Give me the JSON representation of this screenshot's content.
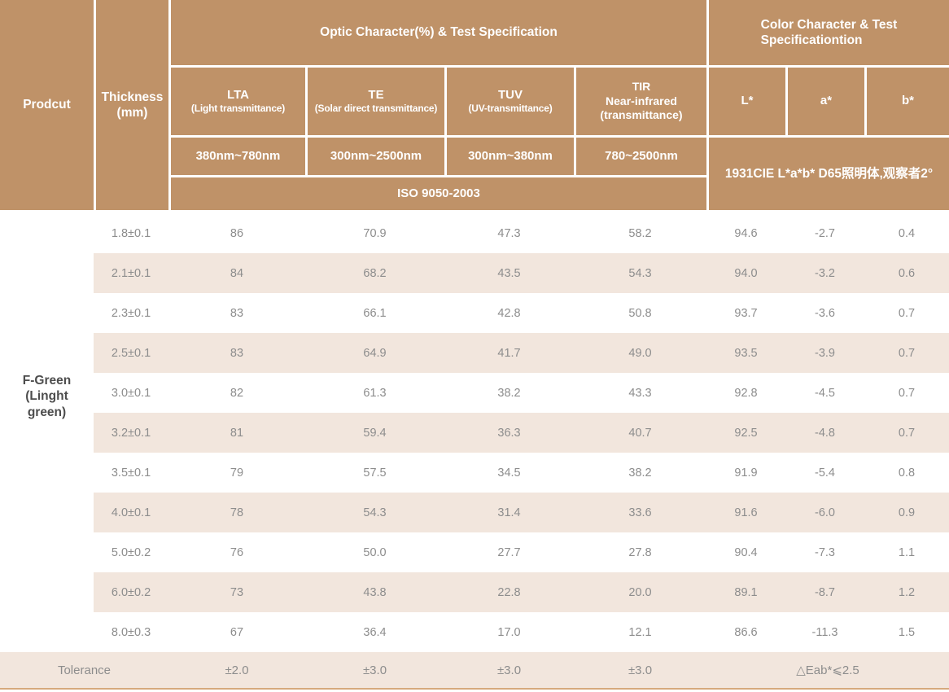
{
  "colors": {
    "header_tan": "#bf9268",
    "row_stripe": "#f2e6dd",
    "data_text": "#8d8d8d",
    "product_text": "#4d4d4d",
    "bottom_line": "#d6a97c"
  },
  "header": {
    "product_label": "Prodcut",
    "thickness_line1": "Thickness",
    "thickness_line2": "(mm)",
    "optic_title": "Optic Character(%) & Test Specification",
    "color_title_line1": "Color Character & Test",
    "color_title_line2": "Specificationtion",
    "lta_abbr": "LTA",
    "lta_desc": "(Light transmittance)",
    "te_abbr": "TE",
    "te_desc": "(Solar direct transmittance)",
    "tuv_abbr": "TUV",
    "tuv_desc": "(UV-transmittance)",
    "tir_line1": "TIR",
    "tir_line2": "Near-infrared",
    "tir_line3": "(transmittance)",
    "l_label": "L*",
    "a_label": "a*",
    "b_label": "b*",
    "range_lta": "380nm~780nm",
    "range_te": "300nm~2500nm",
    "range_tuv": "300nm~380nm",
    "range_tir": "780~2500nm",
    "iso_label": "ISO 9050-2003",
    "cie_label": "1931CIE L*a*b*  D65照明体,观察者2°"
  },
  "product": {
    "name_line1": "F-Green",
    "name_line2": "(Linght",
    "name_line3": "green)"
  },
  "rows": [
    {
      "thickness": "1.8±0.1",
      "lta": "86",
      "te": "70.9",
      "tuv": "47.3",
      "tir": "58.2",
      "l": "94.6",
      "a": "-2.7",
      "b": "0.4"
    },
    {
      "thickness": "2.1±0.1",
      "lta": "84",
      "te": "68.2",
      "tuv": "43.5",
      "tir": "54.3",
      "l": "94.0",
      "a": "-3.2",
      "b": "0.6"
    },
    {
      "thickness": "2.3±0.1",
      "lta": "83",
      "te": "66.1",
      "tuv": "42.8",
      "tir": "50.8",
      "l": "93.7",
      "a": "-3.6",
      "b": "0.7"
    },
    {
      "thickness": "2.5±0.1",
      "lta": "83",
      "te": "64.9",
      "tuv": "41.7",
      "tir": "49.0",
      "l": "93.5",
      "a": "-3.9",
      "b": "0.7"
    },
    {
      "thickness": "3.0±0.1",
      "lta": "82",
      "te": "61.3",
      "tuv": "38.2",
      "tir": "43.3",
      "l": "92.8",
      "a": "-4.5",
      "b": "0.7"
    },
    {
      "thickness": "3.2±0.1",
      "lta": "81",
      "te": "59.4",
      "tuv": "36.3",
      "tir": "40.7",
      "l": "92.5",
      "a": "-4.8",
      "b": "0.7"
    },
    {
      "thickness": "3.5±0.1",
      "lta": "79",
      "te": "57.5",
      "tuv": "34.5",
      "tir": "38.2",
      "l": "91.9",
      "a": "-5.4",
      "b": "0.8"
    },
    {
      "thickness": "4.0±0.1",
      "lta": "78",
      "te": "54.3",
      "tuv": "31.4",
      "tir": "33.6",
      "l": "91.6",
      "a": "-6.0",
      "b": "0.9"
    },
    {
      "thickness": "5.0±0.2",
      "lta": "76",
      "te": "50.0",
      "tuv": "27.7",
      "tir": "27.8",
      "l": "90.4",
      "a": "-7.3",
      "b": "1.1"
    },
    {
      "thickness": "6.0±0.2",
      "lta": "73",
      "te": "43.8",
      "tuv": "22.8",
      "tir": "20.0",
      "l": "89.1",
      "a": "-8.7",
      "b": "1.2"
    },
    {
      "thickness": "8.0±0.3",
      "lta": "67",
      "te": "36.4",
      "tuv": "17.0",
      "tir": "12.1",
      "l": "86.6",
      "a": "-11.3",
      "b": "1.5"
    }
  ],
  "tolerance": {
    "label": "Tolerance",
    "lta": "±2.0",
    "te": "±3.0",
    "tuv": "±3.0",
    "tir": "±3.0",
    "eab": "△Eab*⩽2.5"
  }
}
